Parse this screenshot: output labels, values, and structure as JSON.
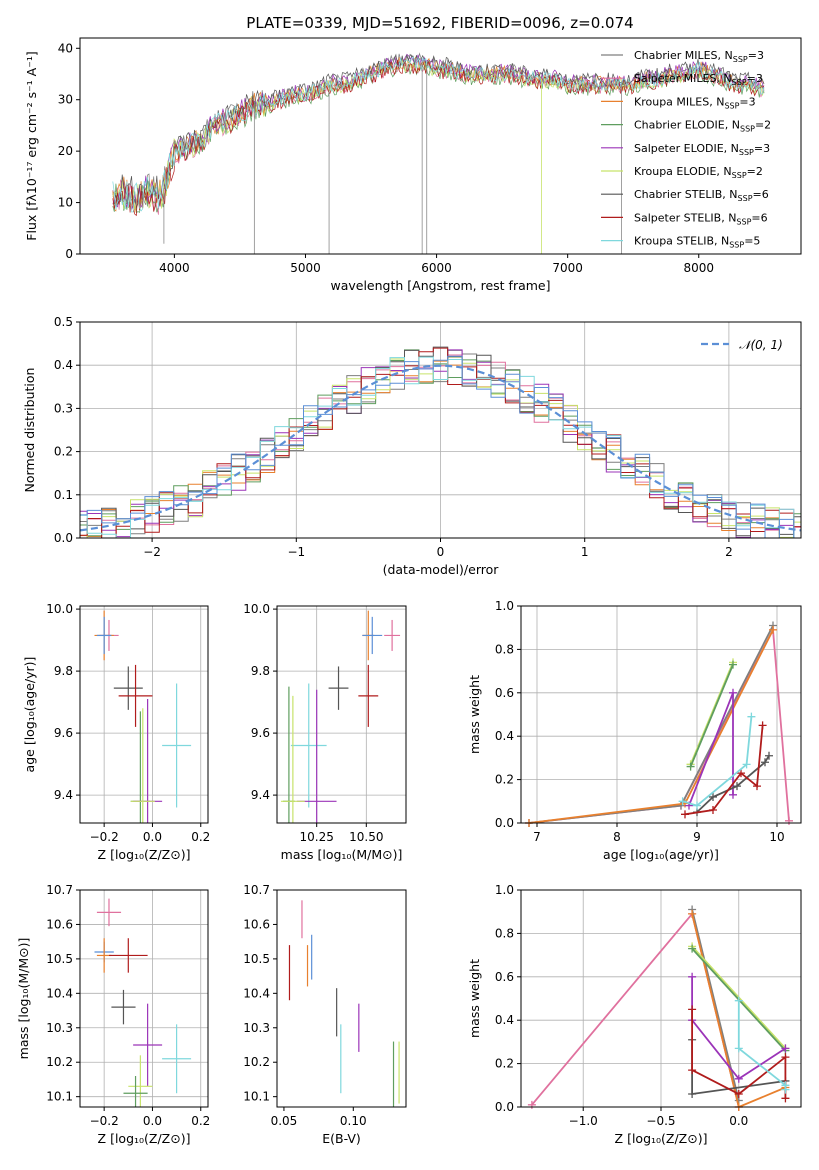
{
  "figure": {
    "title": "PLATE=0339, MJD=51692, FIBERID=0096, z=0.074"
  },
  "models": [
    {
      "name": "Chabrier MILES",
      "nssp": "3",
      "color": "#7f7f7f"
    },
    {
      "name": "Salpeter MILES",
      "nssp": "3",
      "color": "#e0719e"
    },
    {
      "name": "Kroupa MILES",
      "nssp": "3",
      "color": "#e8802e"
    },
    {
      "name": "Chabrier ELODIE",
      "nssp": "2",
      "color": "#5f9e5f"
    },
    {
      "name": "Salpeter ELODIE",
      "nssp": "3",
      "color": "#9b34b8"
    },
    {
      "name": "Kroupa ELODIE",
      "nssp": "2",
      "color": "#c8e36a"
    },
    {
      "name": "Chabrier STELIB",
      "nssp": "6",
      "color": "#555555"
    },
    {
      "name": "Salpeter STELIB",
      "nssp": "6",
      "color": "#b01c1c"
    },
    {
      "name": "Kroupa STELIB",
      "nssp": "5",
      "color": "#7fd8dd"
    }
  ],
  "chart_data": [
    {
      "type": "line",
      "id": "spectrum",
      "xlabel": "wavelength [Angstrom, rest frame]",
      "ylabel": "Flux [fλ10⁻¹⁷ erg cm⁻² s⁻¹ A⁻¹]",
      "xlim": [
        3280,
        8780
      ],
      "ylim": [
        0,
        42
      ],
      "xticks": [
        4000,
        5000,
        6000,
        7000,
        8000
      ],
      "yticks": [
        0,
        10,
        20,
        30,
        40
      ],
      "legend": "top-right",
      "legend_suffix": ", N",
      "legend_sub": "SSP",
      "x": [
        3530,
        3600,
        3700,
        3800,
        3900,
        4000,
        4100,
        4200,
        4300,
        4400,
        4500,
        4600,
        4700,
        4800,
        4900,
        5000,
        5100,
        5200,
        5300,
        5400,
        5500,
        5600,
        5700,
        5800,
        5900,
        6000,
        6100,
        6200,
        6300,
        6400,
        6500,
        6600,
        6700,
        6800,
        6900,
        7000,
        7100,
        7200,
        7300,
        7400,
        7500,
        7600,
        7700,
        7800,
        7900,
        8000,
        8100,
        8200,
        8300,
        8400,
        8500
      ],
      "y": [
        11,
        12,
        11,
        12,
        11,
        20,
        21,
        22,
        25,
        26,
        27,
        29,
        29,
        30,
        31,
        31,
        32,
        33,
        33,
        34,
        35,
        36,
        37,
        37,
        37,
        36,
        36,
        35,
        35,
        35,
        35,
        35,
        34,
        34,
        34,
        33,
        33,
        33,
        33,
        33,
        33,
        34,
        34,
        35,
        35,
        36,
        35,
        34,
        33,
        33,
        32
      ]
    },
    {
      "type": "line",
      "id": "residuals",
      "xlabel": "(data-model)/error",
      "ylabel": "Normed distribution",
      "xlim": [
        -2.5,
        2.5
      ],
      "ylim": [
        0,
        0.5
      ],
      "xticks": [
        -2,
        -1,
        0,
        1,
        2
      ],
      "yticks": [
        0.0,
        0.1,
        0.2,
        0.3,
        0.4,
        0.5
      ],
      "legend": "top-right",
      "gauss_label": "𝒩(0, 1)",
      "gauss_color": "#5b8fd6",
      "grid": true
    },
    {
      "type": "scatter",
      "id": "age-vs-Z",
      "xlabel": "Z [log₁₀(Z/Z⊙)]",
      "ylabel": "age  [log₁₀(age/yr)]",
      "xlim": [
        -0.3,
        0.23
      ],
      "ylim": [
        9.31,
        10.01
      ],
      "xticks": [
        -0.2,
        0.0,
        0.2
      ],
      "yticks": [
        9.4,
        9.6,
        9.8,
        10.0
      ],
      "grid": true,
      "points": [
        {
          "x": -0.18,
          "y": 9.915,
          "xerr": 0.04,
          "yerr": 0.05,
          "color": "#e0719e"
        },
        {
          "x": -0.2,
          "y": 9.915,
          "xerr": 0.04,
          "yerr": 0.08,
          "color": "#e8802e"
        },
        {
          "x": -0.2,
          "y": 9.915,
          "xerr": 0.03,
          "yerr": 0.06,
          "color": "#5b8fd6"
        },
        {
          "x": -0.1,
          "y": 9.745,
          "xerr": 0.06,
          "yerr": 0.07,
          "color": "#555555"
        },
        {
          "x": -0.07,
          "y": 9.72,
          "xerr": 0.07,
          "yerr": 0.1,
          "color": "#b01c1c"
        },
        {
          "x": 0.1,
          "y": 9.56,
          "xerr": 0.06,
          "yerr": 0.2,
          "color": "#7fd8dd"
        },
        {
          "x": -0.05,
          "y": 9.38,
          "xerr": 0.04,
          "yerr": 0.29,
          "color": "#5f9e5f"
        },
        {
          "x": -0.02,
          "y": 9.38,
          "xerr": 0.06,
          "yerr": 0.33,
          "color": "#9b34b8"
        },
        {
          "x": -0.04,
          "y": 9.38,
          "xerr": 0.05,
          "yerr": 0.3,
          "color": "#c8e36a"
        }
      ]
    },
    {
      "type": "scatter",
      "id": "age-vs-mass",
      "xlabel": "mass [log₁₀(M/M⊙)]",
      "ylabel": "",
      "xlim": [
        10.05,
        10.7
      ],
      "ylim": [
        9.31,
        10.01
      ],
      "xticks": [
        10.25,
        10.5
      ],
      "yticks": [
        9.4,
        9.6,
        9.8,
        10.0
      ],
      "grid": true,
      "points": [
        {
          "x": 10.63,
          "y": 9.915,
          "xerr": 0.04,
          "yerr": 0.05,
          "color": "#e0719e"
        },
        {
          "x": 10.51,
          "y": 9.915,
          "xerr": 0.03,
          "yerr": 0.08,
          "color": "#e8802e"
        },
        {
          "x": 10.53,
          "y": 9.915,
          "xerr": 0.05,
          "yerr": 0.06,
          "color": "#5b8fd6"
        },
        {
          "x": 10.36,
          "y": 9.745,
          "xerr": 0.05,
          "yerr": 0.07,
          "color": "#555555"
        },
        {
          "x": 10.51,
          "y": 9.72,
          "xerr": 0.05,
          "yerr": 0.1,
          "color": "#b01c1c"
        },
        {
          "x": 10.21,
          "y": 9.56,
          "xerr": 0.09,
          "yerr": 0.2,
          "color": "#7fd8dd"
        },
        {
          "x": 10.11,
          "y": 9.38,
          "xerr": 0.03,
          "yerr": 0.37,
          "color": "#5f9e5f"
        },
        {
          "x": 10.25,
          "y": 9.38,
          "xerr": 0.1,
          "yerr": 0.36,
          "color": "#9b34b8"
        },
        {
          "x": 10.13,
          "y": 9.38,
          "xerr": 0.06,
          "yerr": 0.34,
          "color": "#c8e36a"
        }
      ]
    },
    {
      "type": "line",
      "id": "massweight-vs-age",
      "xlabel": "age  [log₁₀(age/yr)]",
      "ylabel": "mass weight",
      "xlim": [
        6.8,
        10.3
      ],
      "ylim": [
        0,
        1.0
      ],
      "xticks": [
        7,
        8,
        9,
        10
      ],
      "yticks": [
        0.0,
        0.2,
        0.4,
        0.6,
        0.8,
        1.0
      ],
      "grid": true,
      "series": [
        {
          "color": "#e0719e",
          "x": [
            6.9,
            8.8,
            9.95,
            10.15
          ],
          "y": [
            0.0,
            0.08,
            0.89,
            0.01
          ]
        },
        {
          "color": "#7f7f7f",
          "x": [
            6.9,
            8.8,
            9.95
          ],
          "y": [
            0.0,
            0.08,
            0.91
          ]
        },
        {
          "color": "#e8802e",
          "x": [
            6.9,
            8.85,
            9.95
          ],
          "y": [
            0.0,
            0.09,
            0.89
          ]
        },
        {
          "color": "#c8e36a",
          "x": [
            8.92,
            9.45,
            8.92
          ],
          "y": [
            0.27,
            0.74,
            0.27
          ]
        },
        {
          "color": "#5f9e5f",
          "x": [
            8.92,
            9.45
          ],
          "y": [
            0.26,
            0.73
          ]
        },
        {
          "color": "#9b34b8",
          "x": [
            8.9,
            9.45,
            9.45
          ],
          "y": [
            0.08,
            0.6,
            0.13
          ]
        },
        {
          "color": "#555555",
          "x": [
            9.0,
            9.2,
            9.5,
            9.85,
            9.9
          ],
          "y": [
            0.05,
            0.12,
            0.17,
            0.28,
            0.31
          ]
        },
        {
          "color": "#b01c1c",
          "x": [
            8.85,
            9.2,
            9.55,
            9.75,
            9.82
          ],
          "y": [
            0.04,
            0.06,
            0.23,
            0.17,
            0.45
          ]
        },
        {
          "color": "#7fd8dd",
          "x": [
            8.82,
            9.0,
            9.62,
            9.68
          ],
          "y": [
            0.1,
            0.08,
            0.27,
            0.49
          ]
        }
      ]
    },
    {
      "type": "scatter",
      "id": "mass-vs-Z",
      "xlabel": "Z [log₁₀(Z/Z⊙)]",
      "ylabel": "mass [log₁₀(M/M⊙)]",
      "xlim": [
        -0.3,
        0.23
      ],
      "ylim": [
        10.07,
        10.7
      ],
      "xticks": [
        -0.2,
        0.0,
        0.2
      ],
      "yticks": [
        10.1,
        10.2,
        10.3,
        10.4,
        10.5,
        10.6,
        10.7
      ],
      "grid": true,
      "points": [
        {
          "x": -0.18,
          "y": 10.635,
          "xerr": 0.05,
          "yerr": 0.04,
          "color": "#e0719e"
        },
        {
          "x": -0.2,
          "y": 10.52,
          "xerr": 0.04,
          "yerr": 0.03,
          "color": "#5b8fd6"
        },
        {
          "x": -0.2,
          "y": 10.51,
          "xerr": 0.03,
          "yerr": 0.05,
          "color": "#e8802e"
        },
        {
          "x": -0.1,
          "y": 10.51,
          "xerr": 0.08,
          "yerr": 0.05,
          "color": "#b01c1c"
        },
        {
          "x": -0.12,
          "y": 10.36,
          "xerr": 0.05,
          "yerr": 0.05,
          "color": "#555555"
        },
        {
          "x": 0.1,
          "y": 10.21,
          "xerr": 0.06,
          "yerr": 0.1,
          "color": "#7fd8dd"
        },
        {
          "x": -0.02,
          "y": 10.25,
          "xerr": 0.06,
          "yerr": 0.12,
          "color": "#9b34b8"
        },
        {
          "x": -0.05,
          "y": 10.13,
          "xerr": 0.05,
          "yerr": 0.09,
          "color": "#c8e36a"
        },
        {
          "x": -0.07,
          "y": 10.11,
          "xerr": 0.05,
          "yerr": 0.05,
          "color": "#5f9e5f"
        }
      ]
    },
    {
      "type": "scatter",
      "id": "mass-vs-ebv",
      "xlabel": "E(B-V)",
      "ylabel": "",
      "xlim": [
        0.045,
        0.138
      ],
      "ylim": [
        10.07,
        10.7
      ],
      "xticks": [
        0.05,
        0.1
      ],
      "yticks": [
        10.1,
        10.2,
        10.3,
        10.4,
        10.5,
        10.6,
        10.7
      ],
      "grid": false,
      "points": [
        {
          "x": 0.063,
          "y": 10.615,
          "xerr": 0,
          "yerr": 0.055,
          "color": "#e0719e"
        },
        {
          "x": 0.07,
          "y": 10.505,
          "xerr": 0,
          "yerr": 0.065,
          "color": "#5b8fd6"
        },
        {
          "x": 0.067,
          "y": 10.48,
          "xerr": 0,
          "yerr": 0.06,
          "color": "#e8802e"
        },
        {
          "x": 0.054,
          "y": 10.46,
          "xerr": 0,
          "yerr": 0.08,
          "color": "#b01c1c"
        },
        {
          "x": 0.088,
          "y": 10.345,
          "xerr": 0,
          "yerr": 0.07,
          "color": "#555555"
        },
        {
          "x": 0.104,
          "y": 10.3,
          "xerr": 0,
          "yerr": 0.07,
          "color": "#9b34b8"
        },
        {
          "x": 0.091,
          "y": 10.21,
          "xerr": 0,
          "yerr": 0.1,
          "color": "#7fd8dd"
        },
        {
          "x": 0.129,
          "y": 10.16,
          "xerr": 0,
          "yerr": 0.1,
          "color": "#5f9e5f"
        },
        {
          "x": 0.133,
          "y": 10.17,
          "xerr": 0,
          "yerr": 0.09,
          "color": "#c8e36a"
        }
      ]
    },
    {
      "type": "line",
      "id": "massweight-vs-Z",
      "xlabel": "Z [log₁₀(Z/Z⊙)]",
      "ylabel": "mass weight",
      "xlim": [
        -1.4,
        0.4
      ],
      "ylim": [
        0,
        1.0
      ],
      "xticks": [
        -1.0,
        -0.5,
        0.0
      ],
      "yticks": [
        0.0,
        0.2,
        0.4,
        0.6,
        0.8,
        1.0
      ],
      "grid": true,
      "series": [
        {
          "color": "#e0719e",
          "x": [
            -1.33,
            -0.3,
            0.0
          ],
          "y": [
            0.01,
            0.89,
            0.0
          ]
        },
        {
          "color": "#7f7f7f",
          "x": [
            -0.3,
            0.0
          ],
          "y": [
            0.91,
            0.03
          ]
        },
        {
          "color": "#e8802e",
          "x": [
            -0.3,
            0.0,
            0.3
          ],
          "y": [
            0.89,
            0.0,
            0.09
          ]
        },
        {
          "color": "#c8e36a",
          "x": [
            -0.3,
            0.3
          ],
          "y": [
            0.74,
            0.27
          ]
        },
        {
          "color": "#5f9e5f",
          "x": [
            -0.3,
            0.3
          ],
          "y": [
            0.73,
            0.26
          ]
        },
        {
          "color": "#9b34b8",
          "x": [
            -0.3,
            -0.3,
            0.0,
            0.3
          ],
          "y": [
            0.6,
            0.4,
            0.13,
            0.27
          ]
        },
        {
          "color": "#555555",
          "x": [
            -0.3,
            -0.3,
            0.3
          ],
          "y": [
            0.31,
            0.06,
            0.12
          ]
        },
        {
          "color": "#b01c1c",
          "x": [
            -0.3,
            -0.3,
            0.0,
            0.3,
            0.3
          ],
          "y": [
            0.45,
            0.17,
            0.06,
            0.23,
            0.04
          ]
        },
        {
          "color": "#7fd8dd",
          "x": [
            0.0,
            0.0,
            0.3,
            0.3
          ],
          "y": [
            0.49,
            0.27,
            0.1,
            0.08
          ]
        }
      ]
    }
  ]
}
